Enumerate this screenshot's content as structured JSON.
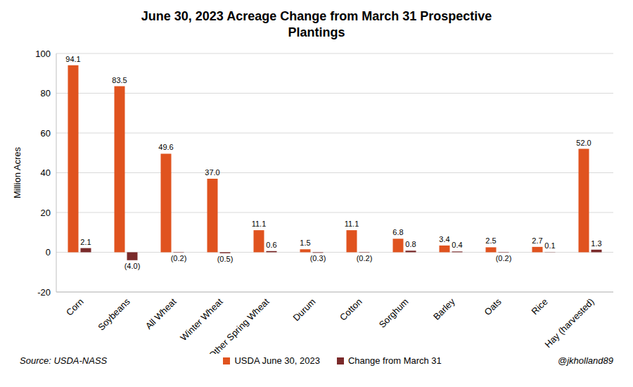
{
  "chart_data": {
    "type": "bar",
    "title": "June 30, 2023 Acreage Change from March 31 Prospective Plantings",
    "y_label": "Million Acres",
    "source": "Source: USDA-NASS",
    "credit": "@jkholland89",
    "categories": [
      "Corn",
      "Soybeans",
      "All Wheat",
      "Winter Wheat",
      "Other Spring Wheat",
      "Durum",
      "Cotton",
      "Sorghum",
      "Barley",
      "Oats",
      "Rice",
      "Hay (harvested)"
    ],
    "series": [
      {
        "name": "USDA June 30, 2023",
        "color": "#e0531f",
        "values": [
          94.1,
          83.5,
          49.6,
          37.0,
          11.1,
          1.5,
          11.1,
          6.8,
          3.4,
          2.5,
          2.7,
          52.0
        ],
        "value_labels": [
          "94.1",
          "83.5",
          "49.6",
          "37.0",
          "11.1",
          "1.5",
          "11.1",
          "6.8",
          "3.4",
          "2.5",
          "2.7",
          "52.0"
        ]
      },
      {
        "name": "Change from March 31",
        "color": "#7a2a2a",
        "values": [
          2.1,
          -4.0,
          -0.2,
          -0.5,
          0.6,
          -0.3,
          -0.2,
          0.8,
          0.4,
          -0.2,
          0.1,
          1.3
        ],
        "value_labels": [
          "2.1",
          "(4.0)",
          "(0.2)",
          "(0.5)",
          "0.6",
          "(0.3)",
          "(0.2)",
          "0.8",
          "0.4",
          "(0.2)",
          "0.1",
          "1.3"
        ]
      }
    ],
    "ylim": [
      -20,
      100
    ],
    "yticks": [
      -20,
      0,
      20,
      40,
      60,
      80,
      100
    ],
    "grid": true,
    "legend": "bottom",
    "data_labels": true
  }
}
